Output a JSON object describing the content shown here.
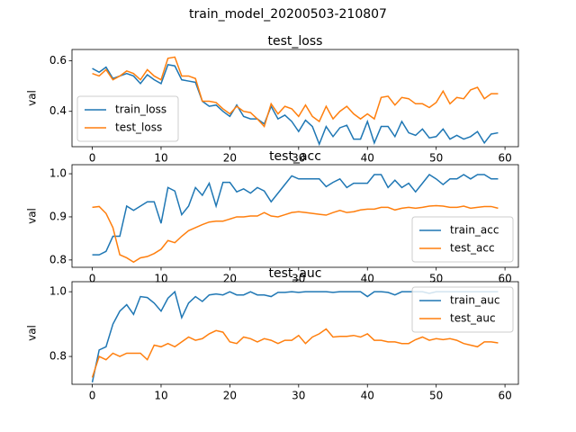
{
  "title": "train_model_20200503-210807",
  "chart_data": [
    {
      "type": "line",
      "title": "test_loss",
      "y_label": "val",
      "legend": "lower left",
      "x": [
        0,
        1,
        2,
        3,
        4,
        5,
        6,
        7,
        8,
        9,
        10,
        11,
        12,
        13,
        14,
        15,
        16,
        17,
        18,
        19,
        20,
        21,
        22,
        23,
        24,
        25,
        26,
        27,
        28,
        29,
        30,
        31,
        32,
        33,
        34,
        35,
        36,
        37,
        38,
        39,
        40,
        41,
        42,
        43,
        44,
        45,
        46,
        47,
        48,
        49,
        50,
        51,
        52,
        53,
        54,
        55,
        56,
        57,
        58,
        59
      ],
      "xlim": [
        -2.95,
        61.95
      ],
      "xticks": [
        0,
        10,
        20,
        30,
        40,
        50,
        60
      ],
      "ylim": [
        0.26,
        0.645
      ],
      "yticks": [
        0.4,
        0.6
      ],
      "series": [
        {
          "name": "train_loss",
          "color": "#1f77b4",
          "values": [
            0.57,
            0.555,
            0.575,
            0.53,
            0.54,
            0.55,
            0.54,
            0.51,
            0.545,
            0.525,
            0.51,
            0.585,
            0.58,
            0.525,
            0.52,
            0.515,
            0.44,
            0.42,
            0.425,
            0.4,
            0.38,
            0.425,
            0.38,
            0.37,
            0.37,
            0.35,
            0.42,
            0.37,
            0.385,
            0.36,
            0.32,
            0.365,
            0.34,
            0.27,
            0.34,
            0.3,
            0.335,
            0.345,
            0.29,
            0.29,
            0.36,
            0.275,
            0.34,
            0.34,
            0.3,
            0.36,
            0.315,
            0.305,
            0.33,
            0.295,
            0.3,
            0.33,
            0.29,
            0.305,
            0.29,
            0.3,
            0.32,
            0.275,
            0.31,
            0.315
          ]
        },
        {
          "name": "test_loss",
          "color": "#ff7f0e",
          "values": [
            0.55,
            0.54,
            0.565,
            0.525,
            0.54,
            0.56,
            0.55,
            0.525,
            0.565,
            0.54,
            0.525,
            0.61,
            0.615,
            0.54,
            0.54,
            0.53,
            0.44,
            0.44,
            0.435,
            0.41,
            0.39,
            0.42,
            0.4,
            0.395,
            0.37,
            0.34,
            0.43,
            0.39,
            0.42,
            0.41,
            0.38,
            0.425,
            0.38,
            0.36,
            0.42,
            0.37,
            0.4,
            0.42,
            0.39,
            0.37,
            0.39,
            0.37,
            0.455,
            0.46,
            0.425,
            0.455,
            0.45,
            0.43,
            0.43,
            0.415,
            0.435,
            0.48,
            0.43,
            0.455,
            0.45,
            0.485,
            0.495,
            0.45,
            0.47,
            0.47
          ]
        }
      ]
    },
    {
      "type": "line",
      "title": "test_acc",
      "y_label": "val",
      "legend": "lower right",
      "x": [
        0,
        1,
        2,
        3,
        4,
        5,
        6,
        7,
        8,
        9,
        10,
        11,
        12,
        13,
        14,
        15,
        16,
        17,
        18,
        19,
        20,
        21,
        22,
        23,
        24,
        25,
        26,
        27,
        28,
        29,
        30,
        31,
        32,
        33,
        34,
        35,
        36,
        37,
        38,
        39,
        40,
        41,
        42,
        43,
        44,
        45,
        46,
        47,
        48,
        49,
        50,
        51,
        52,
        53,
        54,
        55,
        56,
        57,
        58,
        59
      ],
      "xlim": [
        -2.95,
        61.95
      ],
      "xticks": [
        0,
        10,
        20,
        30,
        40,
        50,
        60
      ],
      "ylim": [
        0.783,
        1.021
      ],
      "yticks": [
        0.8,
        0.9,
        {
          "value": 1,
          "label": "1.0"
        }
      ],
      "series": [
        {
          "name": "train_acc",
          "color": "#1f77b4",
          "values": [
            0.812,
            0.812,
            0.82,
            0.855,
            0.855,
            0.925,
            0.915,
            0.925,
            0.935,
            0.935,
            0.885,
            0.968,
            0.96,
            0.905,
            0.925,
            0.968,
            0.95,
            0.978,
            0.925,
            0.98,
            0.98,
            0.958,
            0.965,
            0.955,
            0.968,
            0.96,
            0.935,
            0.955,
            0.975,
            0.995,
            0.988,
            0.988,
            0.988,
            0.988,
            0.97,
            0.98,
            0.988,
            0.968,
            0.978,
            0.978,
            0.978,
            0.998,
            0.998,
            0.968,
            0.985,
            0.968,
            0.978,
            0.958,
            0.978,
            0.998,
            0.988,
            0.975,
            0.988,
            0.988,
            0.998,
            0.988,
            0.998,
            0.998,
            0.988,
            0.988
          ]
        },
        {
          "name": "test_acc",
          "color": "#ff7f0e",
          "values": [
            0.922,
            0.924,
            0.908,
            0.875,
            0.812,
            0.805,
            0.795,
            0.805,
            0.808,
            0.815,
            0.825,
            0.845,
            0.84,
            0.855,
            0.868,
            0.875,
            0.882,
            0.888,
            0.89,
            0.89,
            0.895,
            0.9,
            0.9,
            0.902,
            0.902,
            0.91,
            0.902,
            0.9,
            0.905,
            0.91,
            0.912,
            0.91,
            0.908,
            0.906,
            0.904,
            0.91,
            0.915,
            0.91,
            0.912,
            0.916,
            0.918,
            0.918,
            0.922,
            0.922,
            0.916,
            0.92,
            0.922,
            0.92,
            0.922,
            0.925,
            0.926,
            0.925,
            0.922,
            0.922,
            0.925,
            0.92,
            0.922,
            0.924,
            0.924,
            0.92
          ]
        }
      ]
    },
    {
      "type": "line",
      "title": "test_auc",
      "y_label": "val",
      "legend": "upper right",
      "x": [
        0,
        1,
        2,
        3,
        4,
        5,
        6,
        7,
        8,
        9,
        10,
        11,
        12,
        13,
        14,
        15,
        16,
        17,
        18,
        19,
        20,
        21,
        22,
        23,
        24,
        25,
        26,
        27,
        28,
        29,
        30,
        31,
        32,
        33,
        34,
        35,
        36,
        37,
        38,
        39,
        40,
        41,
        42,
        43,
        44,
        45,
        46,
        47,
        48,
        49,
        50,
        51,
        52,
        53,
        54,
        55,
        56,
        57,
        58,
        59
      ],
      "xlim": [
        -2.95,
        61.95
      ],
      "xticks": [
        0,
        10,
        20,
        30,
        40,
        50,
        60
      ],
      "ylim": [
        0.714,
        1.031
      ],
      "yticks": [
        0.8,
        {
          "value": 1,
          "label": "1.0"
        }
      ],
      "series": [
        {
          "name": "train_auc",
          "color": "#1f77b4",
          "values": [
            0.72,
            0.82,
            0.83,
            0.9,
            0.94,
            0.96,
            0.93,
            0.985,
            0.982,
            0.965,
            0.94,
            0.98,
            1.0,
            0.92,
            0.965,
            0.985,
            0.97,
            0.99,
            0.993,
            0.99,
            1.0,
            0.99,
            0.99,
            1.0,
            0.99,
            0.99,
            0.985,
            0.998,
            0.998,
            1.0,
            0.998,
            1.0,
            1.0,
            1.0,
            1.0,
            0.998,
            1.0,
            1.0,
            1.0,
            1.0,
            0.985,
            1.0,
            1.0,
            0.998,
            0.99,
            1.0,
            1.0,
            1.0,
            1.0,
            0.995,
            1.0,
            1.0,
            1.0,
            1.0,
            1.0,
            1.0,
            1.0,
            1.0,
            1.0,
            1.0
          ]
        },
        {
          "name": "test_auc",
          "color": "#ff7f0e",
          "values": [
            0.735,
            0.8,
            0.79,
            0.81,
            0.8,
            0.81,
            0.81,
            0.81,
            0.79,
            0.835,
            0.83,
            0.84,
            0.83,
            0.845,
            0.86,
            0.85,
            0.855,
            0.87,
            0.88,
            0.875,
            0.845,
            0.84,
            0.86,
            0.855,
            0.845,
            0.855,
            0.85,
            0.84,
            0.85,
            0.85,
            0.865,
            0.84,
            0.86,
            0.87,
            0.885,
            0.86,
            0.862,
            0.862,
            0.865,
            0.86,
            0.87,
            0.85,
            0.85,
            0.845,
            0.845,
            0.84,
            0.84,
            0.852,
            0.86,
            0.85,
            0.855,
            0.852,
            0.855,
            0.85,
            0.84,
            0.835,
            0.83,
            0.845,
            0.845,
            0.842
          ]
        }
      ]
    }
  ]
}
